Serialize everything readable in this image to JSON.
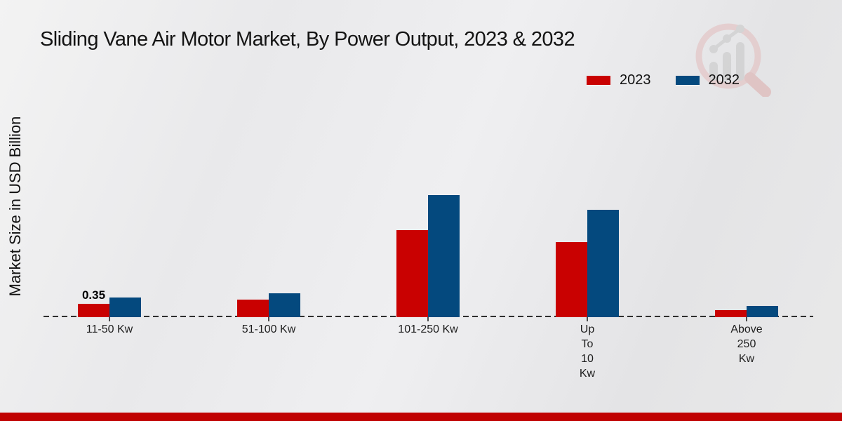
{
  "title": "Sliding Vane Air Motor Market, By Power Output, 2023 & 2032",
  "y_axis_label": "Market Size in USD Billion",
  "legend": [
    {
      "label": "2023",
      "color": "#c90101"
    },
    {
      "label": "2032",
      "color": "#04497e"
    }
  ],
  "footer": {
    "band_color": "#c00101"
  },
  "chart_data": {
    "type": "bar",
    "title": "Sliding Vane Air Motor Market, By Power Output, 2023 & 2032",
    "xlabel": "",
    "ylabel": "Market Size in USD Billion",
    "grid": false,
    "legend_position": "top-right",
    "baseline_style": "dashed",
    "categories": [
      "11-50 Kw",
      "51-100 Kw",
      "101-250 Kw",
      "Up To 10 Kw",
      "Above 250 Kw"
    ],
    "category_lines": [
      [
        "11-50 Kw"
      ],
      [
        "51-100 Kw"
      ],
      [
        "101-250 Kw"
      ],
      [
        "Up",
        "To",
        "10",
        "Kw"
      ],
      [
        "Above",
        "250",
        "Kw"
      ]
    ],
    "series": [
      {
        "name": "2023",
        "color": "#c90101",
        "values": [
          0.35,
          0.46,
          2.28,
          1.98,
          0.18
        ]
      },
      {
        "name": "2032",
        "color": "#04497e",
        "values": [
          0.51,
          0.63,
          3.2,
          2.82,
          0.29
        ]
      }
    ],
    "data_labels": [
      {
        "series": "2023",
        "category": "11-50 Kw",
        "text": "0.35"
      }
    ],
    "ylim": [
      0,
      3.6
    ]
  }
}
